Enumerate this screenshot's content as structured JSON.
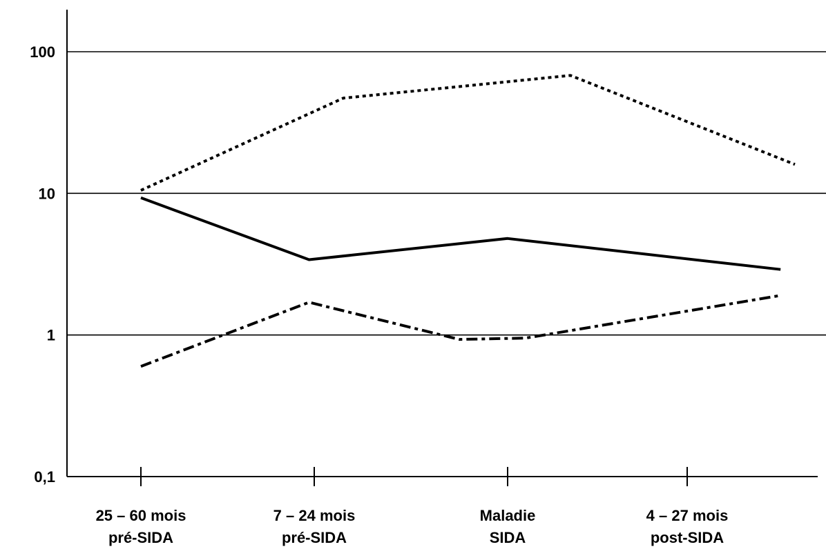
{
  "chart_data": {
    "type": "line",
    "title": "",
    "xlabel": "",
    "ylabel": "",
    "y_scale": "log",
    "ylim": [
      0.1,
      100
    ],
    "y_ticks": [
      {
        "value": 100,
        "label": "100"
      },
      {
        "value": 10,
        "label": "10"
      },
      {
        "value": 1,
        "label": "1"
      },
      {
        "value": 0.1,
        "label": "0,1"
      }
    ],
    "grid": true,
    "categories": [
      {
        "line1": "25 – 60 mois",
        "line2": "pré-SIDA"
      },
      {
        "line1": "7 – 24 mois",
        "line2": "pré-SIDA"
      },
      {
        "line1": "Maladie",
        "line2": "SIDA"
      },
      {
        "line1": "4 – 27 mois",
        "line2": "post-SIDA"
      }
    ],
    "series": [
      {
        "style": "dotted",
        "points": [
          {
            "x": 0.0,
            "y": 10.5
          },
          {
            "x": 1.15,
            "y": 47
          },
          {
            "x": 2.35,
            "y": 68
          },
          {
            "x": 3.6,
            "y": 16
          }
        ]
      },
      {
        "style": "solid",
        "points": [
          {
            "x": 0.0,
            "y": 9.3
          },
          {
            "x": 0.97,
            "y": 3.4
          },
          {
            "x": 2.0,
            "y": 4.8
          },
          {
            "x": 3.52,
            "y": 2.9
          }
        ]
      },
      {
        "style": "dash-dot",
        "points": [
          {
            "x": 0.0,
            "y": 0.6
          },
          {
            "x": 0.97,
            "y": 1.7
          },
          {
            "x": 1.75,
            "y": 0.93
          },
          {
            "x": 2.1,
            "y": 0.95
          },
          {
            "x": 3.52,
            "y": 1.9
          }
        ]
      }
    ]
  }
}
